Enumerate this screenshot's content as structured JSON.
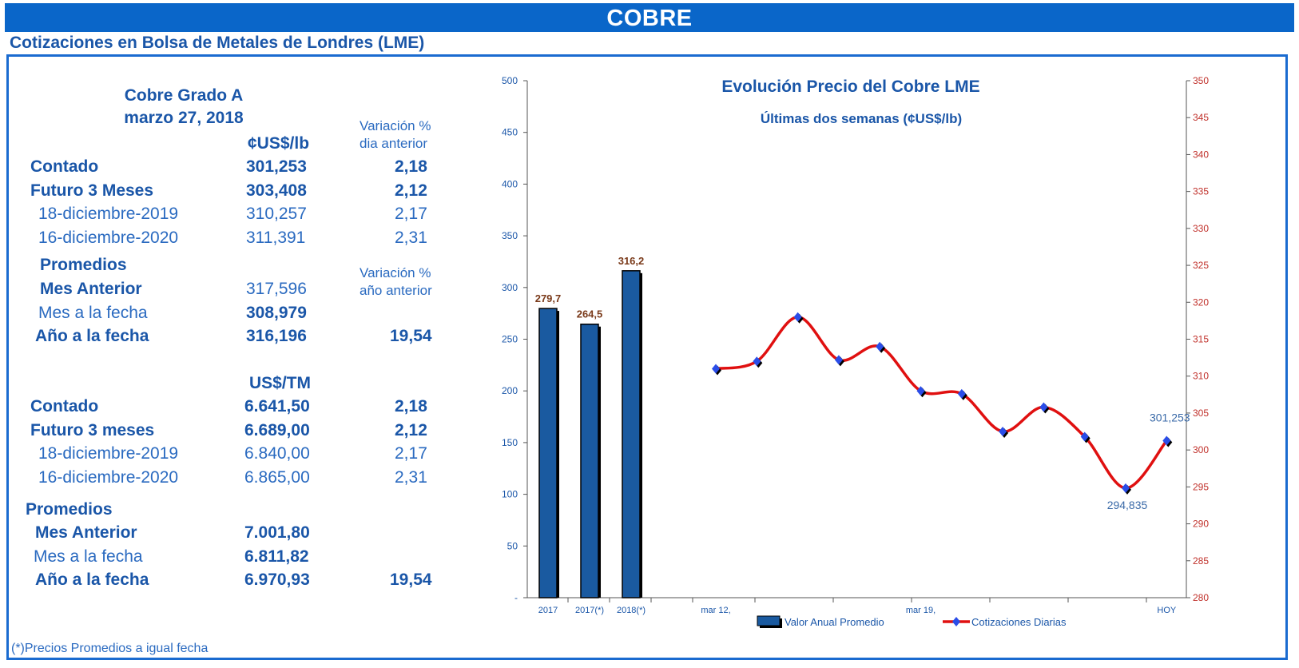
{
  "header": {
    "banner_title": "COBRE",
    "subtitle": "Cotizaciones en Bolsa de Metales de Londres (LME)"
  },
  "panel": {
    "product": "Cobre Grado A",
    "date": "marzo 27, 2018",
    "unit_lb": "¢US$/lb",
    "unit_tm": "US$/TM",
    "var_header_day_1": "Variación %",
    "var_header_day_2": "dia  anterior",
    "var_header_year_1": "Variación %",
    "var_header_year_2": "año anterior",
    "lb_rows": [
      {
        "label": "Contado",
        "value": "301,253",
        "var": "2,18"
      },
      {
        "label": "Futuro 3 Meses",
        "value": "303,408",
        "var": "2,12"
      },
      {
        "label": "18-diciembre-2019",
        "value": "310,257",
        "var": "2,17"
      },
      {
        "label": "16-diciembre-2020",
        "value": "311,391",
        "var": "2,31"
      }
    ],
    "lb_promedios": {
      "heading": "Promedios",
      "mes_anterior_label": "Mes Anterior",
      "mes_anterior_value": "317,596",
      "mes_fecha_label": "Mes a la fecha",
      "mes_fecha_value": "308,979",
      "anio_fecha_label": "Año a la fecha",
      "anio_fecha_value": "316,196",
      "anio_fecha_var": "19,54"
    },
    "tm_rows": [
      {
        "label": "Contado",
        "value": "6.641,50",
        "var": "2,18"
      },
      {
        "label": "Futuro 3 meses",
        "value": "6.689,00",
        "var": "2,12"
      },
      {
        "label": "18-diciembre-2019",
        "value": "6.840,00",
        "var": "2,17"
      },
      {
        "label": "16-diciembre-2020",
        "value": "6.865,00",
        "var": "2,31"
      }
    ],
    "tm_promedios": {
      "heading": "Promedios",
      "mes_anterior_label": "Mes Anterior",
      "mes_anterior_value": "7.001,80",
      "mes_fecha_label": "Mes a la fecha",
      "mes_fecha_value": "6.811,82",
      "anio_fecha_label": "Año a la fecha",
      "anio_fecha_value": "6.970,93",
      "anio_fecha_var": "19,54"
    },
    "footnote": "(*)Precios Promedios a igual  fecha"
  },
  "chart_data": {
    "type": "bar+line",
    "title": "Evolución Precio del Cobre LME",
    "subtitle": "Últimas dos semanas (¢US$/lb)",
    "left_axis": {
      "ylim": [
        0,
        500
      ],
      "ticks": [
        "-",
        "50",
        "100",
        "150",
        "200",
        "250",
        "300",
        "350",
        "400",
        "450",
        "500"
      ]
    },
    "right_axis": {
      "ylim": [
        280,
        350
      ],
      "ticks": [
        "280",
        "285",
        "290",
        "295",
        "300",
        "305",
        "310",
        "315",
        "320",
        "325",
        "330",
        "335",
        "340",
        "345",
        "350"
      ]
    },
    "bar_series": {
      "name": "Valor Anual Promedio",
      "categories": [
        "2017",
        "2017(*)",
        "2018(*)"
      ],
      "values": [
        279.7,
        264.5,
        316.2
      ],
      "labels": [
        "279,7",
        "264,5",
        "316,2"
      ],
      "color": "#1a5aa0"
    },
    "line_series": {
      "name": "Cotizaciones Diarias",
      "values": [
        311.0,
        312.0,
        318.0,
        312.2,
        314.0,
        308.0,
        307.6,
        302.5,
        305.8,
        301.8,
        294.835,
        301.253
      ],
      "color": "#e01010",
      "marker_color": "#2a4de8",
      "annotations": [
        {
          "index": 10,
          "text": "294,835"
        },
        {
          "index": 11,
          "text": "301,253"
        }
      ]
    },
    "x_tick_labels": [
      {
        "text": "mar 12,",
        "slot": 0
      },
      {
        "text": "mar 19,",
        "slot": 5
      },
      {
        "text": "HOY",
        "slot": 11
      }
    ],
    "legend": "bottom"
  }
}
